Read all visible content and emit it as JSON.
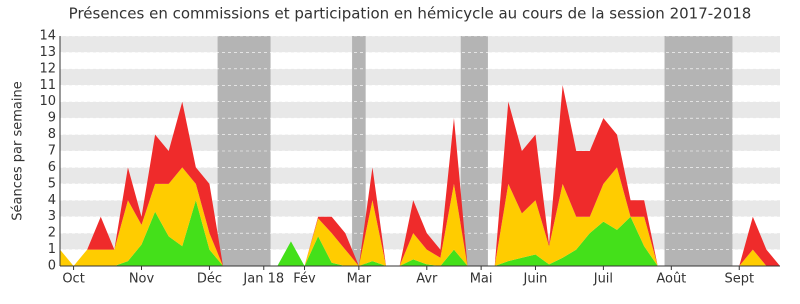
{
  "chart_data": {
    "type": "stacked_area",
    "title": "Présences en commissions et participation en hémicycle au cours de la session 2017-2018",
    "y_label": "Séances par semaine",
    "categories": [
      null,
      "Oct",
      null,
      null,
      null,
      null,
      "Nov",
      null,
      null,
      null,
      null,
      "Déc",
      null,
      null,
      null,
      "Jan 18",
      null,
      null,
      "Fév",
      null,
      null,
      null,
      "Mar",
      null,
      null,
      null,
      null,
      "Avr",
      null,
      null,
      null,
      "Mai",
      null,
      null,
      null,
      "Juin",
      null,
      null,
      null,
      null,
      "Juil",
      null,
      null,
      null,
      null,
      "Août",
      null,
      null,
      null,
      null,
      "Sept",
      null,
      null,
      null
    ],
    "series": [
      {
        "color": "#44e01a",
        "values": [
          0,
          0,
          0,
          0,
          0,
          0.3,
          1.3,
          3.3,
          1.8,
          1.2,
          4,
          1,
          0,
          0,
          0,
          0,
          0,
          1.5,
          0,
          1.8,
          0.2,
          0,
          0,
          0.3,
          0,
          0,
          0.4,
          0.1,
          0,
          1,
          0,
          0,
          0,
          0.3,
          0.5,
          0.7,
          0.1,
          0.5,
          1,
          2,
          2.7,
          2.2,
          3,
          1.2,
          0,
          0,
          0,
          0,
          0,
          0,
          0,
          0,
          0,
          0
        ]
      },
      {
        "color": "#ffcc00",
        "values": [
          1,
          0,
          1,
          1,
          1,
          3.7,
          1.2,
          1.7,
          3.2,
          4.8,
          1,
          1,
          0,
          0,
          0,
          0,
          0,
          0,
          0,
          1.1,
          1.8,
          1,
          0,
          3.7,
          0,
          0,
          1.6,
          0.9,
          0.5,
          4,
          0,
          0,
          0,
          4.7,
          2.7,
          3.3,
          1.1,
          4.5,
          2,
          1,
          2.3,
          3.8,
          0,
          1.8,
          0,
          0,
          0,
          0,
          0,
          0,
          0,
          1,
          0,
          0
        ]
      },
      {
        "color": "#ef2b2b",
        "values": [
          0,
          0,
          0,
          2,
          0,
          2,
          0.5,
          3,
          2,
          4,
          1,
          3,
          0,
          0,
          0,
          0,
          0,
          0,
          0,
          0.1,
          1,
          1,
          0,
          2,
          0,
          0,
          2,
          1,
          0.5,
          4,
          0,
          0,
          0,
          5,
          3.8,
          4,
          0.1,
          6,
          4,
          4,
          4,
          2,
          1,
          1,
          0,
          0,
          0,
          0,
          0,
          0,
          0,
          2,
          1,
          0
        ]
      }
    ],
    "shaded_ranges": [
      [
        11.6,
        15.5
      ],
      [
        21.5,
        22.5
      ],
      [
        29.5,
        31.5
      ],
      [
        44.5,
        49.5
      ]
    ],
    "ylim": [
      0,
      14
    ],
    "yticks": [
      0,
      1,
      2,
      3,
      4,
      5,
      6,
      7,
      8,
      9,
      10,
      11,
      12,
      13,
      14
    ],
    "grid": true
  }
}
